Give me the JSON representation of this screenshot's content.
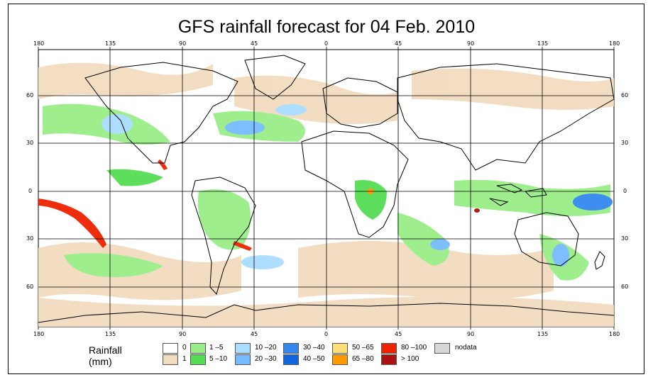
{
  "title": "GFS rainfall forecast for 04 Feb. 2010",
  "map": {
    "lon_ticks": [
      "180",
      "135",
      "90",
      "45",
      "0",
      "45",
      "90",
      "135",
      "180"
    ],
    "lat_ticks": [
      "60",
      "30",
      "0",
      "30",
      "60"
    ],
    "colors": {
      "ocean": "#ffffff",
      "land_outline": "#000000",
      "grid": "#000000"
    }
  },
  "legend": {
    "title": "Rainfall (mm)",
    "items": [
      {
        "label": "0",
        "color": "#ffffff"
      },
      {
        "label": "1",
        "color": "#f2dcc0"
      },
      {
        "label": "1 –5",
        "color": "#99ee88"
      },
      {
        "label": "5 –10",
        "color": "#55dd55"
      },
      {
        "label": "10 –20",
        "color": "#aaddff"
      },
      {
        "label": "20 –30",
        "color": "#77bbff"
      },
      {
        "label": "30 –40",
        "color": "#3388ee"
      },
      {
        "label": "40 –50",
        "color": "#1166dd"
      },
      {
        "label": "50 –65",
        "color": "#ffdd77"
      },
      {
        "label": "65 –80",
        "color": "#ff9900"
      },
      {
        "label": "80 –100",
        "color": "#ee2200"
      },
      {
        "label": "> 100",
        "color": "#aa1111"
      },
      {
        "label": "nodata",
        "color": "#d8d8d8"
      }
    ]
  }
}
